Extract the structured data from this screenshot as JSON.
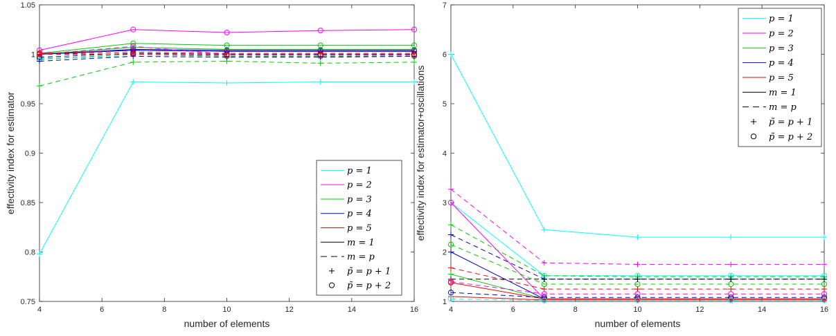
{
  "colors": {
    "p1": "#00ffff",
    "p2": "#ff00ff",
    "p3": "#00cc00",
    "p4": "#0000cc",
    "p5": "#ff0000",
    "black": "#000000"
  },
  "chart_data": [
    {
      "type": "line",
      "xlabel": "number of elements",
      "ylabel": "effectivity index for estimator",
      "xlim": [
        4,
        16
      ],
      "ylim": [
        0.75,
        1.05
      ],
      "xticks": [
        4,
        6,
        8,
        10,
        12,
        14,
        16
      ],
      "yticks": [
        0.75,
        0.8,
        0.85,
        0.9,
        0.95,
        1,
        1.05
      ],
      "ytick_labels": [
        "0.75",
        "0.8",
        "0.85",
        "0.9",
        "0.95",
        "1",
        "1.05"
      ],
      "legend_position": "lower-right",
      "legend": [
        {
          "label": "p = 1",
          "color": "p1",
          "dash": false
        },
        {
          "label": "p = 2",
          "color": "p2",
          "dash": false
        },
        {
          "label": "p = 3",
          "color": "p3",
          "dash": false
        },
        {
          "label": "p = 4",
          "color": "p4",
          "dash": false
        },
        {
          "label": "p = 5",
          "color": "p5",
          "dash": false
        },
        {
          "label": "m = 1",
          "color": "black",
          "dash": false
        },
        {
          "label": "m = p",
          "color": "black",
          "dash": true
        },
        {
          "label": "p̃ = p + 1",
          "marker": "plus"
        },
        {
          "label": "p̃ = p + 2",
          "marker": "circle"
        }
      ],
      "x": [
        4,
        7,
        10,
        13,
        16
      ],
      "series": [
        {
          "color": "p1",
          "dash": false,
          "marker": "plus",
          "values": [
            0.798,
            0.972,
            0.971,
            0.972,
            0.972
          ]
        },
        {
          "color": "p2",
          "dash": false,
          "marker": "circle",
          "values": [
            1.004,
            1.025,
            1.022,
            1.024,
            1.025
          ]
        },
        {
          "color": "p3",
          "dash": false,
          "marker": "circle",
          "values": [
            1.001,
            1.011,
            1.009,
            1.009,
            1.009
          ]
        },
        {
          "color": "p4",
          "dash": false,
          "marker": "circle",
          "values": [
            1.0,
            1.005,
            1.004,
            1.004,
            1.004
          ]
        },
        {
          "color": "p5",
          "dash": false,
          "marker": "circle",
          "values": [
            1.001,
            1.004,
            1.003,
            1.003,
            1.003
          ]
        },
        {
          "color": "p3",
          "dash": false,
          "marker": "plus",
          "values": [
            1.0,
            1.007,
            1.005,
            1.005,
            1.005
          ]
        },
        {
          "color": "p4",
          "dash": false,
          "marker": "plus",
          "values": [
            1.0,
            1.004,
            1.003,
            1.003,
            1.003
          ]
        },
        {
          "color": "p1",
          "dash": true,
          "marker": "plus",
          "values": [
            0.996,
            0.998,
            0.997,
            0.998,
            0.998
          ]
        },
        {
          "color": "p2",
          "dash": true,
          "marker": "circle",
          "values": [
            1.0,
            1.008,
            1.0,
            1.0,
            1.0
          ]
        },
        {
          "color": "p3",
          "dash": true,
          "marker": "plus",
          "values": [
            0.968,
            0.992,
            0.993,
            0.991,
            0.992
          ]
        },
        {
          "color": "p3",
          "dash": true,
          "marker": "circle",
          "values": [
            0.995,
            1.0,
            0.998,
            0.998,
            0.998
          ]
        },
        {
          "color": "p4",
          "dash": true,
          "marker": "plus",
          "values": [
            0.993,
            0.998,
            0.997,
            0.997,
            0.998
          ]
        },
        {
          "color": "p4",
          "dash": true,
          "marker": "circle",
          "values": [
            0.997,
            1.001,
            1.0,
            1.0,
            1.0
          ]
        },
        {
          "color": "p5",
          "dash": true,
          "marker": "plus",
          "values": [
            1.0,
            1.002,
            1.001,
            1.001,
            1.001
          ]
        },
        {
          "color": "p5",
          "dash": true,
          "marker": "circle",
          "values": [
            1.0,
            1.0,
            0.999,
            0.999,
            0.999
          ]
        }
      ]
    },
    {
      "type": "line",
      "xlabel": "number of elements",
      "ylabel": "effectivity index for estimator+oscillations",
      "xlim": [
        4,
        16
      ],
      "ylim": [
        1,
        7
      ],
      "xticks": [
        4,
        6,
        8,
        10,
        12,
        14,
        16
      ],
      "yticks": [
        1,
        2,
        3,
        4,
        5,
        6,
        7
      ],
      "ytick_labels": [
        "1",
        "2",
        "3",
        "4",
        "5",
        "6",
        "7"
      ],
      "legend_position": "top-right",
      "legend": [
        {
          "label": "p = 1",
          "color": "p1",
          "dash": false
        },
        {
          "label": "p = 2",
          "color": "p2",
          "dash": false
        },
        {
          "label": "p = 3",
          "color": "p3",
          "dash": false
        },
        {
          "label": "p = 4",
          "color": "p4",
          "dash": false
        },
        {
          "label": "p = 5",
          "color": "p5",
          "dash": false
        },
        {
          "label": "m = 1",
          "color": "black",
          "dash": false
        },
        {
          "label": "m = p",
          "color": "black",
          "dash": true
        },
        {
          "label": "p̃ = p + 1",
          "marker": "plus"
        },
        {
          "label": "p̃ = p + 2",
          "marker": "circle"
        }
      ],
      "x": [
        4,
        7,
        10,
        13,
        16
      ],
      "series": [
        {
          "color": "p1",
          "dash": false,
          "marker": "plus",
          "values": [
            6.0,
            2.45,
            2.3,
            2.3,
            2.3
          ]
        },
        {
          "color": "p1",
          "dash": false,
          "marker": "circle",
          "values": [
            3.0,
            1.52,
            1.52,
            1.52,
            1.52
          ]
        },
        {
          "color": "p2",
          "dash": true,
          "marker": "plus",
          "values": [
            3.27,
            1.78,
            1.75,
            1.75,
            1.75
          ]
        },
        {
          "color": "p2",
          "dash": false,
          "marker": "circle",
          "values": [
            3.0,
            1.05,
            1.05,
            1.05,
            1.05
          ]
        },
        {
          "color": "p3",
          "dash": true,
          "marker": "plus",
          "values": [
            2.55,
            1.52,
            1.5,
            1.5,
            1.5
          ]
        },
        {
          "color": "p3",
          "dash": true,
          "marker": "circle",
          "values": [
            2.15,
            1.35,
            1.35,
            1.35,
            1.35
          ]
        },
        {
          "color": "p4",
          "dash": true,
          "marker": "plus",
          "values": [
            2.35,
            1.45,
            1.45,
            1.45,
            1.45
          ]
        },
        {
          "color": "p4",
          "dash": false,
          "marker": "plus",
          "values": [
            2.0,
            1.05,
            1.05,
            1.05,
            1.05
          ]
        },
        {
          "color": "p5",
          "dash": true,
          "marker": "plus",
          "values": [
            1.68,
            1.25,
            1.25,
            1.25,
            1.25
          ]
        },
        {
          "color": "p3",
          "dash": false,
          "marker": "plus",
          "values": [
            1.55,
            1.05,
            1.05,
            1.05,
            1.05
          ]
        },
        {
          "color": "black",
          "dash": true,
          "marker": "plus",
          "values": [
            1.45,
            1.45,
            1.45,
            1.45,
            1.45
          ]
        },
        {
          "color": "p2",
          "dash": true,
          "marker": "circle",
          "values": [
            1.4,
            1.15,
            1.15,
            1.15,
            1.15
          ]
        },
        {
          "color": "p5",
          "dash": false,
          "marker": "circle",
          "values": [
            1.38,
            1.05,
            1.05,
            1.05,
            1.05
          ]
        },
        {
          "color": "p4",
          "dash": true,
          "marker": "circle",
          "values": [
            1.18,
            1.08,
            1.08,
            1.08,
            1.08
          ]
        },
        {
          "color": "p5",
          "dash": false,
          "marker": "plus",
          "values": [
            1.1,
            1.03,
            1.03,
            1.03,
            1.03
          ]
        },
        {
          "color": "p1",
          "dash": true,
          "marker": "circle",
          "values": [
            1.05,
            1.02,
            1.02,
            1.02,
            1.02
          ]
        }
      ]
    }
  ]
}
